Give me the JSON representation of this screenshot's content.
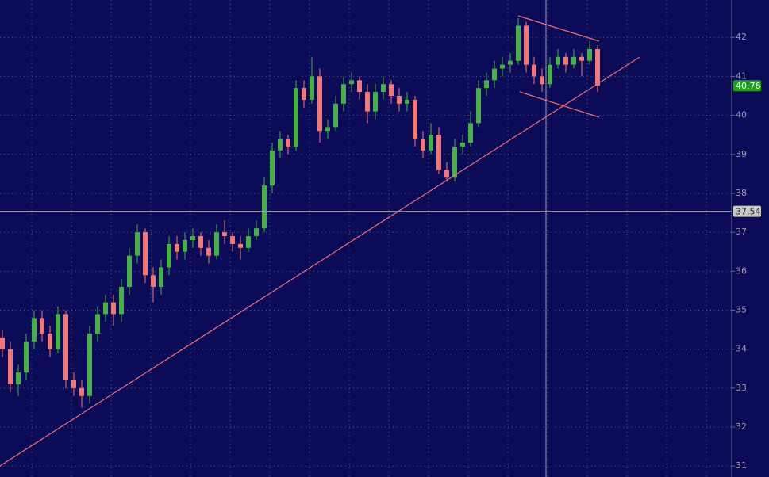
{
  "chart_data": {
    "type": "candlestick",
    "ylim": [
      30.72,
      42.96
    ],
    "yticks": [
      31,
      32,
      33,
      34,
      35,
      36,
      37,
      38,
      39,
      40,
      41,
      42
    ],
    "grid": true,
    "up_color": "#45b045",
    "down_color": "#f07878",
    "crosshair_price": 37.54,
    "last_price": 40.76,
    "candles": [
      [
        34.3,
        34.5,
        33.8,
        34.0
      ],
      [
        34.0,
        34.2,
        32.9,
        33.1
      ],
      [
        33.1,
        33.6,
        32.8,
        33.4
      ],
      [
        33.4,
        34.4,
        33.2,
        34.2
      ],
      [
        34.2,
        35.0,
        34.0,
        34.8
      ],
      [
        34.8,
        35.0,
        34.2,
        34.4
      ],
      [
        34.4,
        34.6,
        33.8,
        34.0
      ],
      [
        34.0,
        35.1,
        33.9,
        34.9
      ],
      [
        34.9,
        35.0,
        33.0,
        33.2
      ],
      [
        33.2,
        33.4,
        32.8,
        33.0
      ],
      [
        33.0,
        33.2,
        32.5,
        32.8
      ],
      [
        32.8,
        34.6,
        32.6,
        34.4
      ],
      [
        34.4,
        35.1,
        34.2,
        34.9
      ],
      [
        34.9,
        35.4,
        34.7,
        35.2
      ],
      [
        35.2,
        35.4,
        34.6,
        34.9
      ],
      [
        34.9,
        35.8,
        34.7,
        35.6
      ],
      [
        35.6,
        36.6,
        35.4,
        36.4
      ],
      [
        36.4,
        37.2,
        36.2,
        37.0
      ],
      [
        37.0,
        37.1,
        35.7,
        35.9
      ],
      [
        35.9,
        36.1,
        35.2,
        35.6
      ],
      [
        35.6,
        36.3,
        35.4,
        36.1
      ],
      [
        36.1,
        36.9,
        35.9,
        36.7
      ],
      [
        36.7,
        36.9,
        36.3,
        36.5
      ],
      [
        36.5,
        37.0,
        36.3,
        36.8
      ],
      [
        36.8,
        37.1,
        36.6,
        36.9
      ],
      [
        36.9,
        37.0,
        36.4,
        36.6
      ],
      [
        36.6,
        36.8,
        36.2,
        36.4
      ],
      [
        36.4,
        37.2,
        36.3,
        37.0
      ],
      [
        37.0,
        37.3,
        36.7,
        36.9
      ],
      [
        36.9,
        37.0,
        36.5,
        36.7
      ],
      [
        36.7,
        36.9,
        36.3,
        36.6
      ],
      [
        36.6,
        37.1,
        36.5,
        36.9
      ],
      [
        36.9,
        37.3,
        36.8,
        37.1
      ],
      [
        37.1,
        38.4,
        37.0,
        38.2
      ],
      [
        38.2,
        39.3,
        38.0,
        39.1
      ],
      [
        39.1,
        39.6,
        38.9,
        39.4
      ],
      [
        39.4,
        39.5,
        39.0,
        39.2
      ],
      [
        39.2,
        40.9,
        39.1,
        40.7
      ],
      [
        40.7,
        40.9,
        40.2,
        40.4
      ],
      [
        40.4,
        41.5,
        40.3,
        41.0
      ],
      [
        41.0,
        41.2,
        39.3,
        39.6
      ],
      [
        39.6,
        39.9,
        39.4,
        39.7
      ],
      [
        39.7,
        40.5,
        39.6,
        40.3
      ],
      [
        40.3,
        41.0,
        40.1,
        40.8
      ],
      [
        40.8,
        41.1,
        40.6,
        40.9
      ],
      [
        40.9,
        41.0,
        40.4,
        40.6
      ],
      [
        40.6,
        40.8,
        39.8,
        40.1
      ],
      [
        40.1,
        40.8,
        39.9,
        40.6
      ],
      [
        40.6,
        41.0,
        40.4,
        40.8
      ],
      [
        40.8,
        40.9,
        40.3,
        40.5
      ],
      [
        40.5,
        40.7,
        40.1,
        40.3
      ],
      [
        40.3,
        40.6,
        40.1,
        40.4
      ],
      [
        40.4,
        40.5,
        39.2,
        39.4
      ],
      [
        39.4,
        39.6,
        38.9,
        39.1
      ],
      [
        39.1,
        39.8,
        39.0,
        39.5
      ],
      [
        39.5,
        39.7,
        38.5,
        38.6
      ],
      [
        38.6,
        38.8,
        38.3,
        38.4
      ],
      [
        38.4,
        39.4,
        38.3,
        39.2
      ],
      [
        39.2,
        39.5,
        39.0,
        39.3
      ],
      [
        39.3,
        40.1,
        39.2,
        39.8
      ],
      [
        39.8,
        40.9,
        39.7,
        40.7
      ],
      [
        40.7,
        41.1,
        40.5,
        40.9
      ],
      [
        40.9,
        41.4,
        40.7,
        41.2
      ],
      [
        41.2,
        41.5,
        41.0,
        41.3
      ],
      [
        41.3,
        41.6,
        41.1,
        41.4
      ],
      [
        41.4,
        42.5,
        41.3,
        42.3
      ],
      [
        42.3,
        42.4,
        41.1,
        41.3
      ],
      [
        41.3,
        41.5,
        40.8,
        41.0
      ],
      [
        41.0,
        41.2,
        40.6,
        40.8
      ],
      [
        40.8,
        41.5,
        40.7,
        41.3
      ],
      [
        41.3,
        41.7,
        41.2,
        41.5
      ],
      [
        41.5,
        41.6,
        41.1,
        41.3
      ],
      [
        41.3,
        41.7,
        41.2,
        41.5
      ],
      [
        41.5,
        41.6,
        41.0,
        41.4
      ],
      [
        41.4,
        41.9,
        41.3,
        41.7
      ],
      [
        41.7,
        41.8,
        40.6,
        40.76
      ]
    ]
  }
}
